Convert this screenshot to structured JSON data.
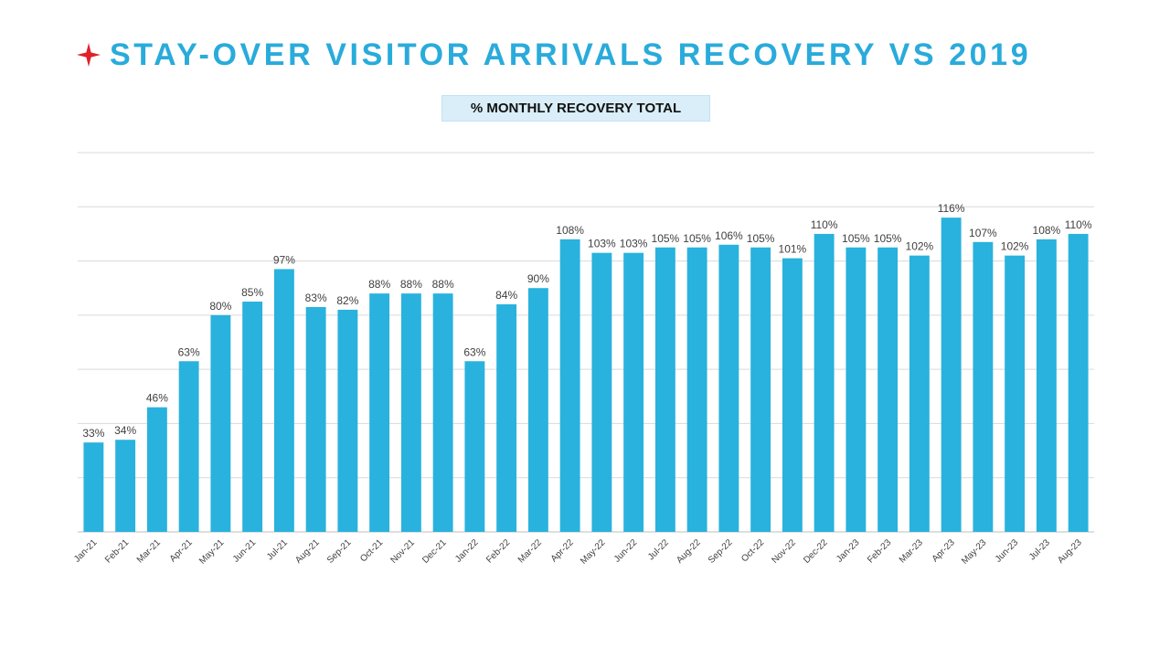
{
  "header": {
    "title": "STAY-OVER VISITOR ARRIVALS RECOVERY VS 2019",
    "star_icon": "red-four-point-star-icon",
    "star_color": "#E0202A",
    "title_color": "#29ABDB"
  },
  "chart_data": {
    "type": "bar",
    "title": "% MONTHLY RECOVERY TOTAL",
    "xlabel": "",
    "ylabel": "",
    "ylim": [
      0,
      140
    ],
    "grid": true,
    "legend": "none",
    "bar_color": "#29B2DD",
    "categories": [
      "Jan-21",
      "Feb-21",
      "Mar-21",
      "Apr-21",
      "May-21",
      "Jun-21",
      "Jul-21",
      "Aug-21",
      "Sep-21",
      "Oct-21",
      "Nov-21",
      "Dec-21",
      "Jan-22",
      "Feb-22",
      "Mar-22",
      "Apr-22",
      "May-22",
      "Jun-22",
      "Jul-22",
      "Aug-22",
      "Sep-22",
      "Oct-22",
      "Nov-22",
      "Dec-22",
      "Jan-23",
      "Feb-23",
      "Mar-23",
      "Apr-23",
      "May-23",
      "Jun-23",
      "Jul-23",
      "Aug-23"
    ],
    "values": [
      33,
      34,
      46,
      63,
      80,
      85,
      97,
      83,
      82,
      88,
      88,
      88,
      63,
      84,
      90,
      108,
      103,
      103,
      105,
      105,
      106,
      105,
      101,
      110,
      105,
      105,
      102,
      116,
      107,
      102,
      108,
      110
    ],
    "labels": [
      "33%",
      "34%",
      "46%",
      "63%",
      "80%",
      "85%",
      "97%",
      "83%",
      "82%",
      "88%",
      "88%",
      "88%",
      "63%",
      "84%",
      "90%",
      "108%",
      "103%",
      "103%",
      "105%",
      "105%",
      "106%",
      "105%",
      "101%",
      "110%",
      "105%",
      "105%",
      "102%",
      "116%",
      "107%",
      "102%",
      "108%",
      "110%"
    ]
  }
}
